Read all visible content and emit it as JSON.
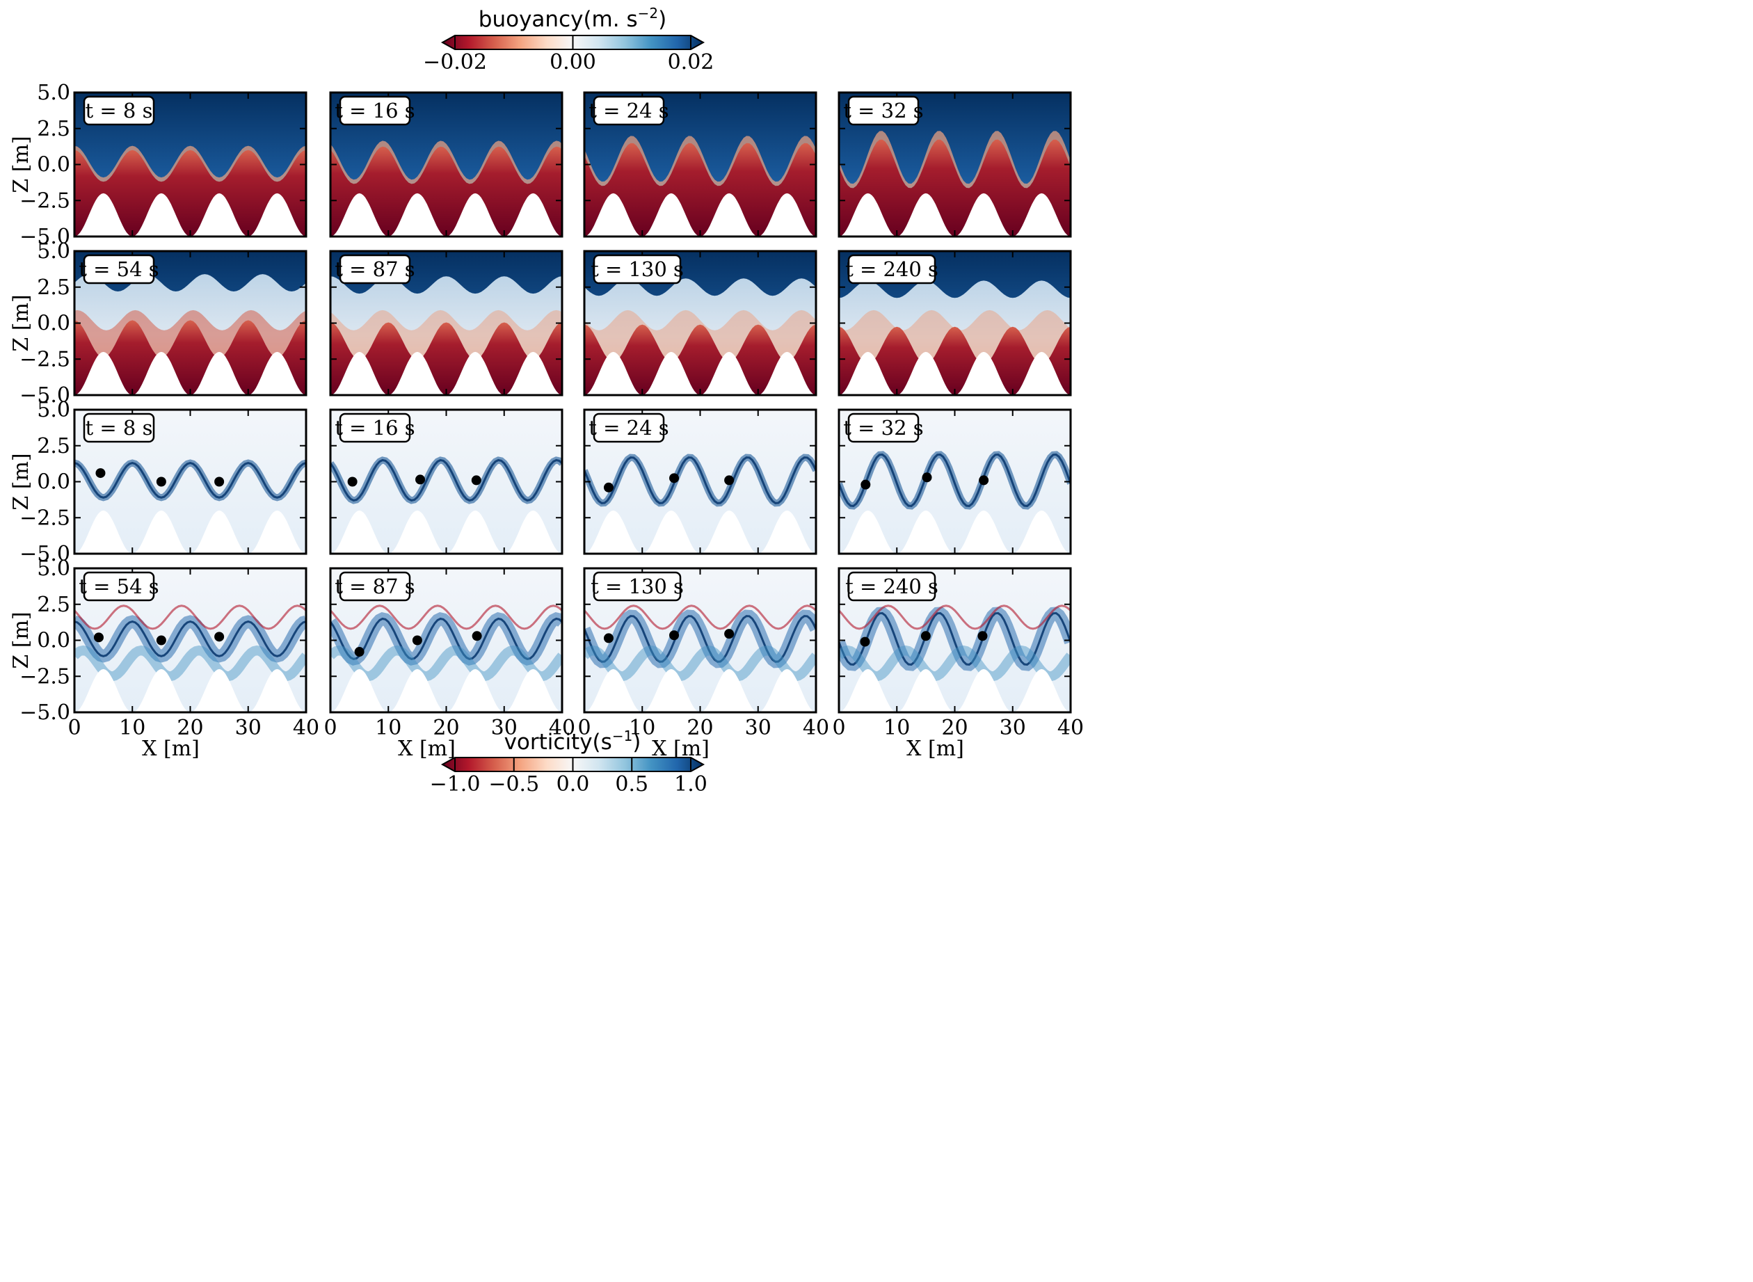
{
  "colorbars": {
    "buoyancy": {
      "label": "buoyancy(m. s",
      "label_sup": "−2",
      "label_close": ")",
      "ticks": [
        "−0.02",
        "0.00",
        "0.02"
      ],
      "tick_values": [
        -0.02,
        0.0,
        0.02
      ],
      "range": [
        -0.02,
        0.02
      ],
      "cmap": [
        "#67001f",
        "#b2182b",
        "#d6604d",
        "#f4a582",
        "#fddbc7",
        "#f7f7f7",
        "#d1e5f0",
        "#92c5de",
        "#4393c3",
        "#2166ac",
        "#053061"
      ]
    },
    "vorticity": {
      "label": "vorticity(s",
      "label_sup": "−1",
      "label_close": ")",
      "ticks": [
        "−1.0",
        "−0.5",
        "0.0",
        "0.5",
        "1.0"
      ],
      "tick_values": [
        -1.0,
        -0.5,
        0.0,
        0.5,
        1.0
      ],
      "range": [
        -1.0,
        1.0
      ],
      "cmap": [
        "#67001f",
        "#b2182b",
        "#d6604d",
        "#f4a582",
        "#fddbc7",
        "#f7f7f7",
        "#d1e5f0",
        "#92c5de",
        "#4393c3",
        "#2166ac",
        "#053061"
      ]
    }
  },
  "axes": {
    "xlabel": "X [m]",
    "ylabel": "Z [m]",
    "xlim": [
      0,
      40
    ],
    "ylim": [
      -5,
      5
    ],
    "xticks": [
      0,
      10,
      20,
      30,
      40
    ],
    "xtick_labels": [
      "0",
      "10",
      "20",
      "30",
      "40"
    ],
    "yticks": [
      5,
      2.5,
      0,
      -2.5,
      -5
    ],
    "ytick_labels": [
      "5.0",
      "2.5",
      "0.0",
      "−2.5",
      "−5.0"
    ]
  },
  "rows": [
    {
      "field": "buoyancy",
      "times": [
        "t = 8 s",
        "t = 16 s",
        "t = 24 s",
        "t = 32 s"
      ]
    },
    {
      "field": "buoyancy",
      "times": [
        "t = 54 s",
        "t = 87 s",
        "t = 130 s",
        "t = 240 s"
      ]
    },
    {
      "field": "vorticity",
      "times": [
        "t = 8 s",
        "t = 16 s",
        "t = 24 s",
        "t = 32 s"
      ]
    },
    {
      "field": "vorticity",
      "times": [
        "t = 54 s",
        "t = 87 s",
        "t = 130 s",
        "t = 240 s"
      ]
    }
  ],
  "chart_data": {
    "type": "heatmap",
    "topography": {
      "crest_x": [
        5,
        15,
        25,
        35
      ],
      "crest_z": -2.0,
      "trough_z": -5.0
    },
    "vortex_markers": [
      [
        [
          4.5,
          0.6
        ],
        [
          15,
          0.0
        ],
        [
          25,
          0.0
        ]
      ],
      [
        [
          3.8,
          0.0
        ],
        [
          15.5,
          0.15
        ],
        [
          25.2,
          0.1
        ]
      ],
      [
        [
          4.2,
          -0.4
        ],
        [
          15.5,
          0.25
        ],
        [
          25,
          0.1
        ]
      ],
      [
        [
          4.6,
          -0.2
        ],
        [
          15.2,
          0.3
        ],
        [
          25,
          0.1
        ]
      ],
      [
        [
          4.2,
          0.2
        ],
        [
          15,
          0.0
        ],
        [
          25,
          0.25
        ]
      ],
      [
        [
          5,
          -0.8
        ],
        [
          15,
          0.0
        ],
        [
          25.3,
          0.3
        ]
      ],
      [
        [
          4.2,
          0.15
        ],
        [
          15.5,
          0.35
        ],
        [
          25,
          0.45
        ]
      ],
      [
        [
          4.5,
          -0.1
        ],
        [
          15,
          0.3
        ],
        [
          24.8,
          0.3
        ]
      ]
    ]
  }
}
